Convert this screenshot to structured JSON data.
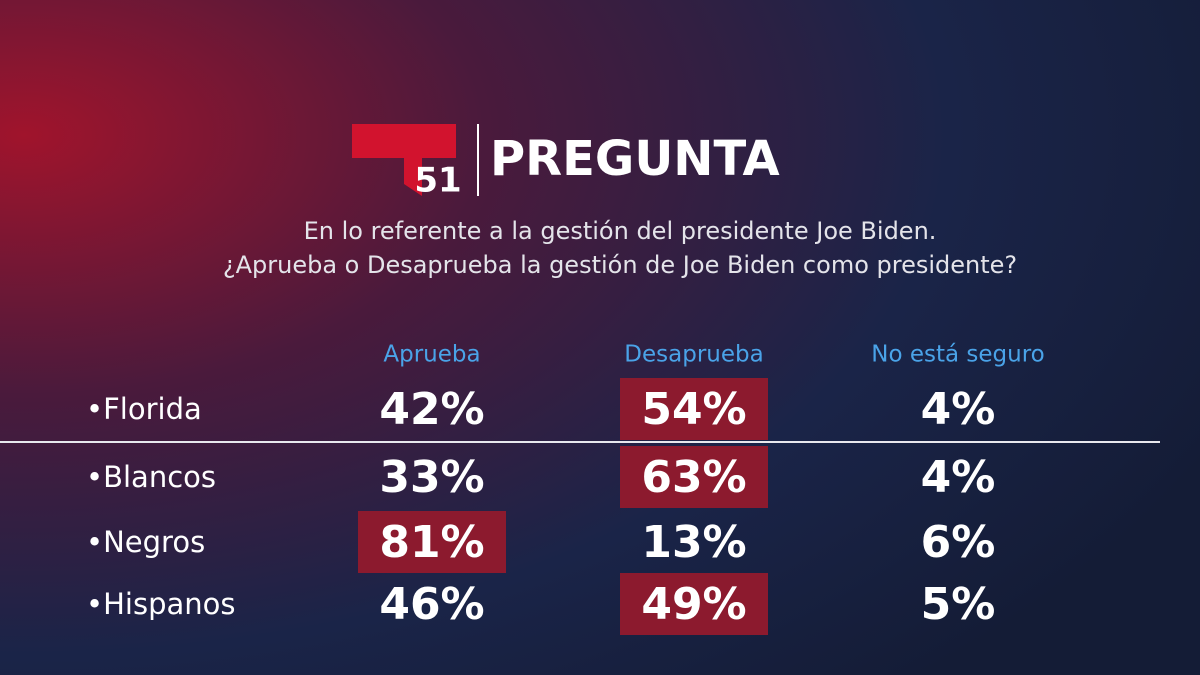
{
  "header": {
    "logo": "51",
    "title": "PREGUNTA"
  },
  "question": [
    "En lo referente a la gestión del presidente Joe Biden.",
    "¿Aprueba o Desaprueba la gestión de Joe Biden como presidente?"
  ],
  "table": {
    "columns": [
      "Aprueba",
      "Desaprueba",
      "No está seguro"
    ],
    "rows": [
      {
        "label": "•Florida",
        "cells": [
          "42%",
          "54%",
          "4%"
        ],
        "highlight": 1
      },
      {
        "label": "•Blancos",
        "cells": [
          "33%",
          "63%",
          "4%"
        ],
        "highlight": 1
      },
      {
        "label": "•Negros",
        "cells": [
          "81%",
          "13%",
          "6%"
        ],
        "highlight": 0
      },
      {
        "label": "•Hispanos",
        "cells": [
          "46%",
          "49%",
          "5%"
        ],
        "highlight": 1
      }
    ]
  }
}
